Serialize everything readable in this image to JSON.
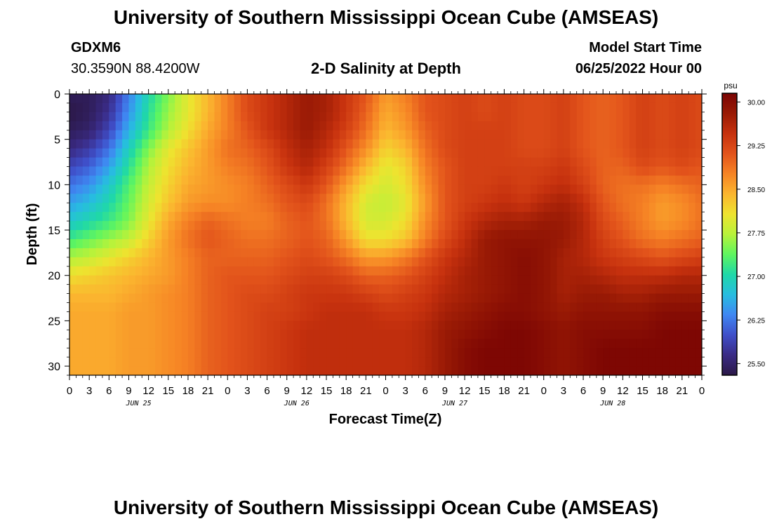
{
  "title": "University of Southern Mississippi Ocean Cube (AMSEAS)",
  "station": {
    "id": "GDXM6",
    "coords": "30.3590N  88.4200W"
  },
  "subtitle": "2-D Salinity at Depth",
  "model_start": {
    "label": "Model Start Time",
    "value": "06/25/2022 Hour 00"
  },
  "bottom_title": "University of Southern Mississippi Ocean Cube (AMSEAS)",
  "chart_data": {
    "type": "heatmap",
    "title": "2-D Salinity at Depth",
    "xlabel": "Forecast Time(Z)",
    "ylabel": "Depth (ft)",
    "x_ticks": [
      "0",
      "3",
      "6",
      "9",
      "12",
      "15",
      "18",
      "21",
      "0",
      "3",
      "6",
      "9",
      "12",
      "15",
      "18",
      "21",
      "0",
      "3",
      "6",
      "9",
      "12",
      "15",
      "18",
      "21",
      "0",
      "3",
      "6",
      "9",
      "12",
      "15",
      "18",
      "21",
      "0"
    ],
    "day_labels": [
      "JUN 25",
      "JUN 26",
      "JUN 27",
      "JUN 28"
    ],
    "y_ticks": [
      "0",
      "5",
      "10",
      "15",
      "20",
      "25",
      "30"
    ],
    "ylim": [
      0,
      31
    ],
    "y_inverted": true,
    "x_range_hours": [
      0,
      96
    ],
    "colorbar": {
      "unit": "psu",
      "ticks": [
        "30.00",
        "29.25",
        "28.50",
        "27.75",
        "27.00",
        "26.25",
        "25.50"
      ],
      "range": [
        25.3,
        30.15
      ]
    },
    "palette": [
      "#2b1847",
      "#3a2b85",
      "#3f4fc9",
      "#3f87f2",
      "#27bde0",
      "#1fd8a8",
      "#5ff55f",
      "#b8f23a",
      "#eee32f",
      "#fbb52f",
      "#f68425",
      "#e2531b",
      "#c6310e",
      "#991a05",
      "#7a0403"
    ],
    "grid_x_hours": [
      0,
      3,
      6,
      9,
      12,
      15,
      18,
      21,
      24,
      27,
      30,
      33,
      36,
      39,
      42,
      45,
      48,
      51,
      54,
      57,
      60,
      63,
      66,
      69,
      72,
      75,
      78,
      81,
      84,
      87,
      90,
      93,
      96
    ],
    "grid_y_depths": [
      0,
      2,
      4,
      6,
      8,
      10,
      12,
      14,
      16,
      18,
      20,
      22,
      24,
      26,
      28,
      30
    ],
    "salinity_grid": [
      [
        25.4,
        25.4,
        25.6,
        26.3,
        27.0,
        27.5,
        28.0,
        28.4,
        28.8,
        29.2,
        29.4,
        29.6,
        29.8,
        29.7,
        29.4,
        29.1,
        28.6,
        28.8,
        29.1,
        29.2,
        29.3,
        29.2,
        29.3,
        29.2,
        29.2,
        29.3,
        29.1,
        29.0,
        29.1,
        29.3,
        29.2,
        29.3,
        29.2
      ],
      [
        25.3,
        25.4,
        25.7,
        26.4,
        27.1,
        27.6,
        28.0,
        28.4,
        28.8,
        29.2,
        29.4,
        29.6,
        29.8,
        29.7,
        29.4,
        29.0,
        28.5,
        28.7,
        29.1,
        29.2,
        29.3,
        29.2,
        29.3,
        29.2,
        29.2,
        29.3,
        29.1,
        29.0,
        29.1,
        29.3,
        29.2,
        29.3,
        29.2
      ],
      [
        25.4,
        25.5,
        25.9,
        26.6,
        27.2,
        27.7,
        28.1,
        28.5,
        28.8,
        29.1,
        29.4,
        29.6,
        29.8,
        29.6,
        29.3,
        28.9,
        28.4,
        28.6,
        29.0,
        29.2,
        29.3,
        29.3,
        29.3,
        29.2,
        29.2,
        29.3,
        29.1,
        29.0,
        29.1,
        29.3,
        29.2,
        29.3,
        29.2
      ],
      [
        25.6,
        25.8,
        26.2,
        26.9,
        27.5,
        28.0,
        28.3,
        28.6,
        28.9,
        29.0,
        29.2,
        29.5,
        29.7,
        29.5,
        29.1,
        28.7,
        28.2,
        28.4,
        28.9,
        29.2,
        29.3,
        29.3,
        29.3,
        29.2,
        29.2,
        29.3,
        29.1,
        29.0,
        29.1,
        29.3,
        29.2,
        29.3,
        29.2
      ],
      [
        25.9,
        26.1,
        26.5,
        27.1,
        27.7,
        28.1,
        28.4,
        28.6,
        28.8,
        28.9,
        29.1,
        29.4,
        29.6,
        29.3,
        28.9,
        28.4,
        28.0,
        28.2,
        28.8,
        29.1,
        29.3,
        29.3,
        29.3,
        29.3,
        29.3,
        29.4,
        29.2,
        29.0,
        29.0,
        29.2,
        29.1,
        29.2,
        29.1
      ],
      [
        26.2,
        26.4,
        26.8,
        27.3,
        27.8,
        28.2,
        28.5,
        28.6,
        28.7,
        28.8,
        29.0,
        29.2,
        29.4,
        29.1,
        28.6,
        28.1,
        27.9,
        28.1,
        28.7,
        29.1,
        29.3,
        29.3,
        29.4,
        29.3,
        29.4,
        29.5,
        29.3,
        29.0,
        28.9,
        28.9,
        28.8,
        28.9,
        29.0
      ],
      [
        26.5,
        26.7,
        27.0,
        27.4,
        27.9,
        28.3,
        28.6,
        28.7,
        28.7,
        28.8,
        28.9,
        29.1,
        29.2,
        28.9,
        28.4,
        27.9,
        27.8,
        28.0,
        28.6,
        29.1,
        29.3,
        29.4,
        29.5,
        29.4,
        29.6,
        29.7,
        29.5,
        29.1,
        28.9,
        28.8,
        28.6,
        28.7,
        28.9
      ],
      [
        26.8,
        27.0,
        27.2,
        27.5,
        28.0,
        28.5,
        28.8,
        29.0,
        28.9,
        28.8,
        28.8,
        29.0,
        29.1,
        28.9,
        28.4,
        27.9,
        27.9,
        28.1,
        28.7,
        29.1,
        29.4,
        29.6,
        29.7,
        29.7,
        29.8,
        29.8,
        29.6,
        29.2,
        29.0,
        28.8,
        28.6,
        28.7,
        28.9
      ],
      [
        27.2,
        27.4,
        27.6,
        27.8,
        28.2,
        28.6,
        28.9,
        29.1,
        29.0,
        28.9,
        28.9,
        29.0,
        29.1,
        29.0,
        28.6,
        28.1,
        28.1,
        28.3,
        28.8,
        29.2,
        29.5,
        29.8,
        29.9,
        29.9,
        29.9,
        29.8,
        29.6,
        29.3,
        29.1,
        28.9,
        28.8,
        28.9,
        29.0
      ],
      [
        27.7,
        27.8,
        28.0,
        28.2,
        28.4,
        28.6,
        28.8,
        29.0,
        29.0,
        29.0,
        29.0,
        29.1,
        29.2,
        29.1,
        28.9,
        28.6,
        28.6,
        28.8,
        29.1,
        29.4,
        29.6,
        29.8,
        29.9,
        30.0,
        29.9,
        29.7,
        29.6,
        29.4,
        29.3,
        29.2,
        29.1,
        29.2,
        29.3
      ],
      [
        28.1,
        28.2,
        28.3,
        28.4,
        28.5,
        28.6,
        28.8,
        29.0,
        29.1,
        29.1,
        29.1,
        29.2,
        29.3,
        29.3,
        29.2,
        29.0,
        29.0,
        29.1,
        29.3,
        29.5,
        29.7,
        29.8,
        29.9,
        30.0,
        29.9,
        29.7,
        29.7,
        29.6,
        29.5,
        29.5,
        29.5,
        29.6,
        29.6
      ],
      [
        28.4,
        28.4,
        28.4,
        28.5,
        28.6,
        28.7,
        28.8,
        29.0,
        29.1,
        29.2,
        29.2,
        29.3,
        29.4,
        29.4,
        29.4,
        29.3,
        29.2,
        29.3,
        29.4,
        29.6,
        29.7,
        29.8,
        29.9,
        30.0,
        29.9,
        29.7,
        29.8,
        29.8,
        29.7,
        29.7,
        29.8,
        29.8,
        29.8
      ],
      [
        28.5,
        28.5,
        28.5,
        28.6,
        28.6,
        28.7,
        28.8,
        29.0,
        29.1,
        29.2,
        29.3,
        29.3,
        29.4,
        29.5,
        29.5,
        29.5,
        29.4,
        29.4,
        29.5,
        29.7,
        29.8,
        29.9,
        30.0,
        30.0,
        29.9,
        29.8,
        29.9,
        29.9,
        29.9,
        29.9,
        30.0,
        30.0,
        30.0
      ],
      [
        28.5,
        28.5,
        28.5,
        28.6,
        28.6,
        28.7,
        28.8,
        29.0,
        29.1,
        29.2,
        29.3,
        29.4,
        29.5,
        29.5,
        29.5,
        29.5,
        29.5,
        29.5,
        29.6,
        29.8,
        29.9,
        30.0,
        30.1,
        30.1,
        30.0,
        29.9,
        30.0,
        30.0,
        30.0,
        30.0,
        30.1,
        30.1,
        30.1
      ],
      [
        28.5,
        28.5,
        28.5,
        28.6,
        28.6,
        28.7,
        28.8,
        29.0,
        29.1,
        29.2,
        29.3,
        29.4,
        29.5,
        29.5,
        29.5,
        29.5,
        29.5,
        29.5,
        29.6,
        29.8,
        30.0,
        30.1,
        30.1,
        30.1,
        30.0,
        29.9,
        30.0,
        30.1,
        30.1,
        30.1,
        30.1,
        30.1,
        30.1
      ],
      [
        28.5,
        28.5,
        28.5,
        28.6,
        28.6,
        28.7,
        28.8,
        29.0,
        29.1,
        29.2,
        29.3,
        29.4,
        29.5,
        29.5,
        29.5,
        29.5,
        29.5,
        29.5,
        29.6,
        29.8,
        30.0,
        30.1,
        30.1,
        30.1,
        30.0,
        29.9,
        30.0,
        30.1,
        30.1,
        30.1,
        30.1,
        30.1,
        30.1
      ]
    ]
  }
}
